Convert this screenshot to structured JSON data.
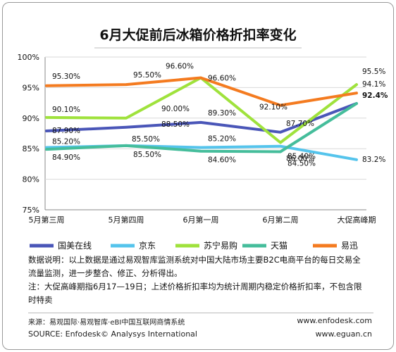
{
  "chart_data": {
    "type": "line",
    "title": "6月大促前后冰箱价格折扣率变化",
    "categories": [
      "5月第三周",
      "5月第四周",
      "6月第一周",
      "6月第二周",
      "大促高峰期"
    ],
    "ylim": [
      75,
      100
    ],
    "yticks": [
      "75%",
      "80%",
      "85%",
      "90%",
      "95%",
      "100%"
    ],
    "ytick_values": [
      75,
      80,
      85,
      90,
      95,
      100
    ],
    "grid": true,
    "legend_position": "bottom",
    "series": [
      {
        "name": "国美在线",
        "color": "#4a56b8",
        "values": [
          87.9,
          88.5,
          89.3,
          87.7,
          92.4
        ],
        "labels": [
          "87.90%",
          "88.50%",
          "89.30%",
          "87.70%",
          "92.4%"
        ]
      },
      {
        "name": "京东",
        "color": "#55c4ec",
        "values": [
          85.2,
          85.5,
          85.2,
          85.4,
          83.2
        ],
        "labels": [
          "85.20%",
          "85.50%",
          "85.20%",
          "85.40%",
          "83.2%"
        ]
      },
      {
        "name": "苏宁易购",
        "color": "#9fe23c",
        "values": [
          90.1,
          90.0,
          96.6,
          86.0,
          95.5
        ],
        "labels": [
          "90.10%",
          "90.00%",
          "96.60%",
          "86.00%",
          "95.5%"
        ]
      },
      {
        "name": "天猫",
        "color": "#45bd9b",
        "values": [
          84.9,
          85.5,
          84.6,
          84.5,
          92.4
        ],
        "labels": [
          "84.90%",
          "85.50%",
          "84.60%",
          "84.50%",
          ""
        ]
      },
      {
        "name": "易迅",
        "color": "#f47b20",
        "values": [
          95.3,
          95.5,
          96.6,
          92.1,
          94.1
        ],
        "labels": [
          "95.30%",
          "95.50%",
          "96.60%",
          "92.10%",
          "94.1%"
        ]
      }
    ]
  },
  "notes": {
    "line1": "数据说明：以上数据是通过易观智库监测系统对中国大陆市场主要B2C电商平台的每日交易全",
    "line2": "流量监测，进一步整合、修正、分析得出。",
    "line3": "注：大促高峰期指6月17—19日；上述价格折扣率均为统计周期内稳定价格折扣率，不包含限",
    "line4": "时特卖"
  },
  "footer": {
    "source_cn": "来源：易观国际·易观智库·eBI中国互联网商情系统",
    "source_en": "SOURCE: Enfodesk© Analysys International",
    "url1": "www.enfodesk.com",
    "url2": "www.eguan.cn"
  }
}
